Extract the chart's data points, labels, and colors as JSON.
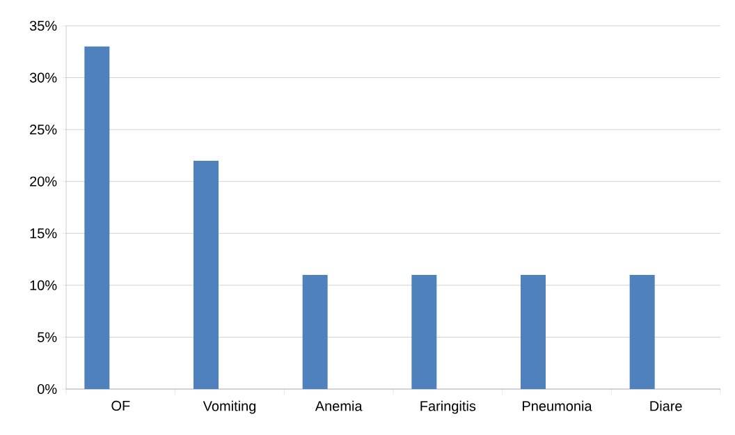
{
  "chart_data": {
    "type": "bar",
    "categories": [
      "OF",
      "Vomiting",
      "Anemia",
      "Faringitis",
      "Pneumonia",
      "Diare"
    ],
    "values": [
      33,
      22,
      11,
      11,
      11,
      11
    ],
    "color": "#4f81bd",
    "ylim": [
      0,
      35
    ],
    "yticks": [
      {
        "value": 0,
        "label": "0%"
      },
      {
        "value": 5,
        "label": "5%"
      },
      {
        "value": 10,
        "label": "10%"
      },
      {
        "value": 15,
        "label": "15%"
      },
      {
        "value": 20,
        "label": "20%"
      },
      {
        "value": 25,
        "label": "25%"
      },
      {
        "value": 30,
        "label": "30%"
      },
      {
        "value": 35,
        "label": "35%"
      }
    ],
    "grid": "y"
  }
}
